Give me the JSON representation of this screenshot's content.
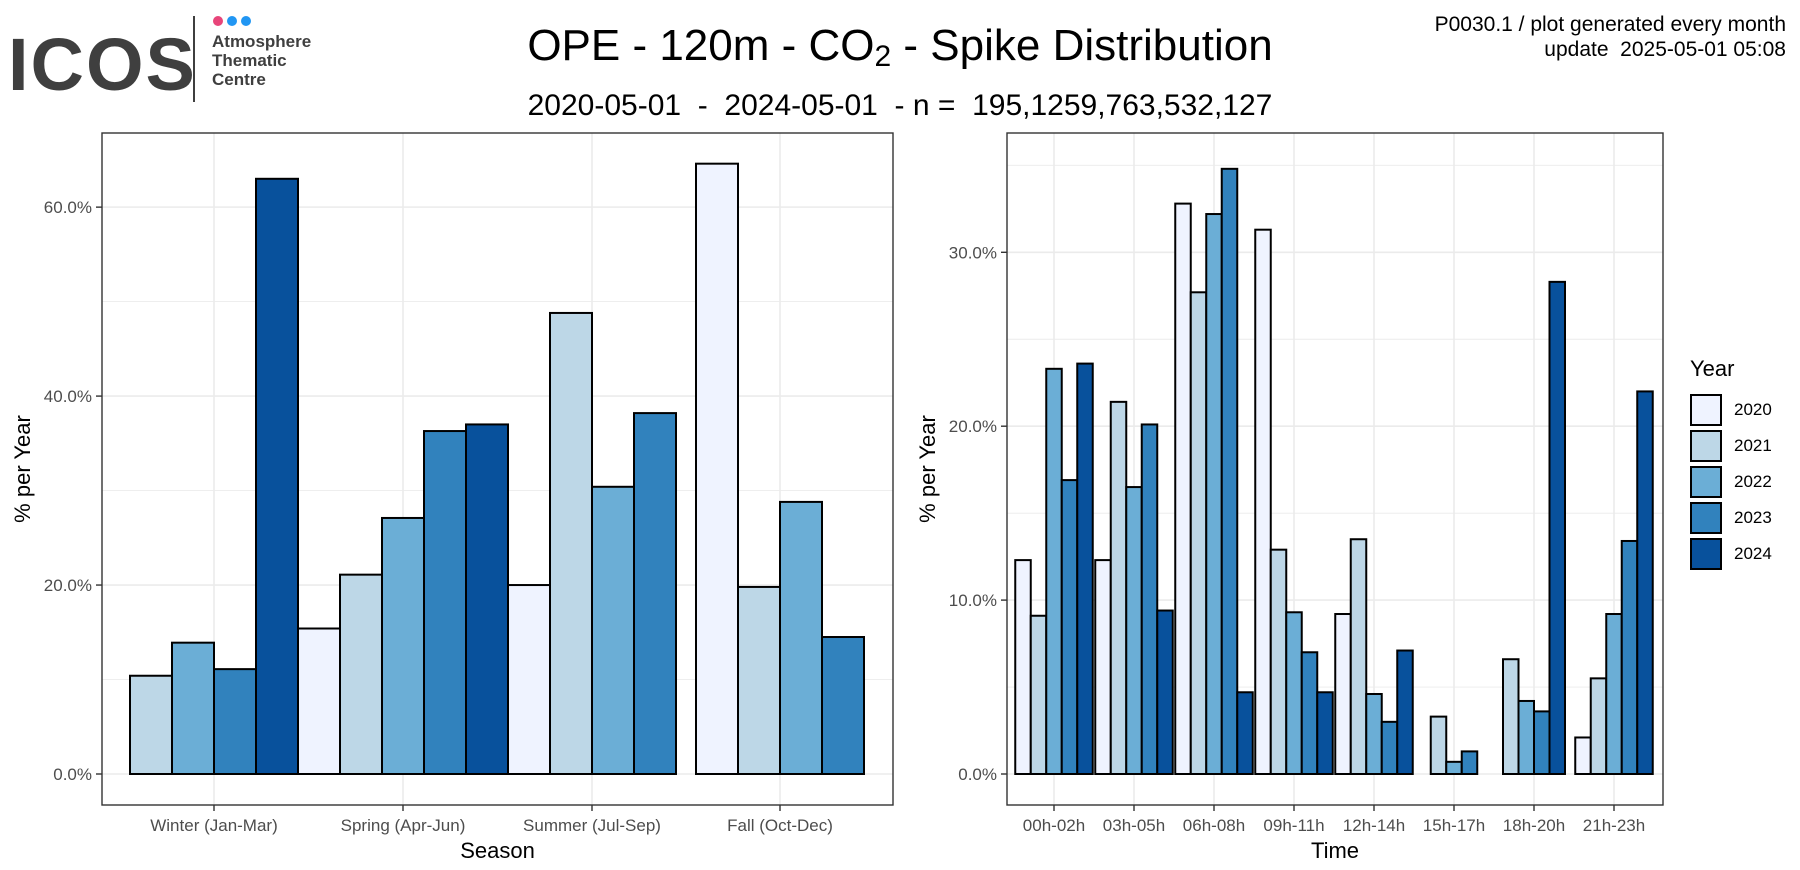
{
  "logo": {
    "wordmark": "ICOS",
    "lines": [
      "Atmosphere",
      "Thematic",
      "Centre"
    ],
    "dot_colors": [
      "#e8457a",
      "#2196f3",
      "#2196f3"
    ]
  },
  "header": {
    "title_main": "OPE - 120m - CO",
    "title_sub": "2",
    "title_tail": " - Spike Distribution",
    "subtitle": "2020-05-01  -  2024-05-01  - n =  195,1259,763,532,127",
    "meta_line1": "P0030.1 / plot generated every month",
    "meta_line2": "update  2025-05-01 05:08"
  },
  "colors": {
    "2020": "#eff3ff",
    "2021": "#bdd7e7",
    "2022": "#6baed6",
    "2023": "#3182bd",
    "2024": "#08519c"
  },
  "legend": {
    "title": "Year",
    "items": [
      "2020",
      "2021",
      "2022",
      "2023",
      "2024"
    ]
  },
  "chart_data": [
    {
      "type": "bar",
      "xlabel": "Season",
      "ylabel": "% per Year",
      "ylim": [
        0,
        67
      ],
      "yticks": [
        0,
        20,
        40,
        60
      ],
      "ytick_labels": [
        "0.0%",
        "20.0%",
        "40.0%",
        "60.0%"
      ],
      "grid": true,
      "categories": [
        "Winter (Jan-Mar)",
        "Spring (Apr-Jun)",
        "Summer (Jul-Sep)",
        "Fall (Oct-Dec)"
      ],
      "groups": [
        {
          "category": "Winter (Jan-Mar)",
          "bars": [
            {
              "year": "2021",
              "value": 10.4
            },
            {
              "year": "2022",
              "value": 13.9
            },
            {
              "year": "2023",
              "value": 11.1
            },
            {
              "year": "2024",
              "value": 63.0
            }
          ]
        },
        {
          "category": "Spring (Apr-Jun)",
          "bars": [
            {
              "year": "2020",
              "value": 15.4
            },
            {
              "year": "2021",
              "value": 21.1
            },
            {
              "year": "2022",
              "value": 27.1
            },
            {
              "year": "2023",
              "value": 36.3
            },
            {
              "year": "2024",
              "value": 37.0
            }
          ]
        },
        {
          "category": "Summer (Jul-Sep)",
          "bars": [
            {
              "year": "2020",
              "value": 20.0
            },
            {
              "year": "2021",
              "value": 48.8
            },
            {
              "year": "2022",
              "value": 30.4
            },
            {
              "year": "2023",
              "value": 38.2
            }
          ]
        },
        {
          "category": "Fall (Oct-Dec)",
          "bars": [
            {
              "year": "2020",
              "value": 64.6
            },
            {
              "year": "2021",
              "value": 19.8
            },
            {
              "year": "2022",
              "value": 28.8
            },
            {
              "year": "2023",
              "value": 14.5
            }
          ]
        }
      ]
    },
    {
      "type": "bar",
      "xlabel": "Time",
      "ylabel": "% per Year",
      "ylim": [
        0,
        36.4
      ],
      "yticks": [
        0,
        10,
        20,
        30
      ],
      "ytick_labels": [
        "0.0%",
        "10.0%",
        "20.0%",
        "30.0%"
      ],
      "grid": true,
      "categories": [
        "00h-02h",
        "03h-05h",
        "06h-08h",
        "09h-11h",
        "12h-14h",
        "15h-17h",
        "18h-20h",
        "21h-23h"
      ],
      "groups": [
        {
          "category": "00h-02h",
          "bars": [
            {
              "year": "2020",
              "value": 12.3
            },
            {
              "year": "2021",
              "value": 9.1
            },
            {
              "year": "2022",
              "value": 23.3
            },
            {
              "year": "2023",
              "value": 16.9
            },
            {
              "year": "2024",
              "value": 23.6
            }
          ]
        },
        {
          "category": "03h-05h",
          "bars": [
            {
              "year": "2020",
              "value": 12.3
            },
            {
              "year": "2021",
              "value": 21.4
            },
            {
              "year": "2022",
              "value": 16.5
            },
            {
              "year": "2023",
              "value": 20.1
            },
            {
              "year": "2024",
              "value": 9.4
            }
          ]
        },
        {
          "category": "06h-08h",
          "bars": [
            {
              "year": "2020",
              "value": 32.8
            },
            {
              "year": "2021",
              "value": 27.7
            },
            {
              "year": "2022",
              "value": 32.2
            },
            {
              "year": "2023",
              "value": 34.8
            },
            {
              "year": "2024",
              "value": 4.7
            }
          ]
        },
        {
          "category": "09h-11h",
          "bars": [
            {
              "year": "2020",
              "value": 31.3
            },
            {
              "year": "2021",
              "value": 12.9
            },
            {
              "year": "2022",
              "value": 9.3
            },
            {
              "year": "2023",
              "value": 7.0
            },
            {
              "year": "2024",
              "value": 4.7
            }
          ]
        },
        {
          "category": "12h-14h",
          "bars": [
            {
              "year": "2020",
              "value": 9.2
            },
            {
              "year": "2021",
              "value": 13.5
            },
            {
              "year": "2022",
              "value": 4.6
            },
            {
              "year": "2023",
              "value": 3.0
            },
            {
              "year": "2024",
              "value": 7.1
            }
          ]
        },
        {
          "category": "15h-17h",
          "bars": [
            {
              "year": "2021",
              "value": 3.3
            },
            {
              "year": "2022",
              "value": 0.7
            },
            {
              "year": "2023",
              "value": 1.3
            }
          ]
        },
        {
          "category": "18h-20h",
          "bars": [
            {
              "year": "2021",
              "value": 6.6
            },
            {
              "year": "2022",
              "value": 4.2
            },
            {
              "year": "2023",
              "value": 3.6
            },
            {
              "year": "2024",
              "value": 28.3
            }
          ]
        },
        {
          "category": "21h-23h",
          "bars": [
            {
              "year": "2020",
              "value": 2.1
            },
            {
              "year": "2021",
              "value": 5.5
            },
            {
              "year": "2022",
              "value": 9.2
            },
            {
              "year": "2023",
              "value": 13.4
            },
            {
              "year": "2024",
              "value": 22.0
            }
          ]
        }
      ]
    }
  ]
}
